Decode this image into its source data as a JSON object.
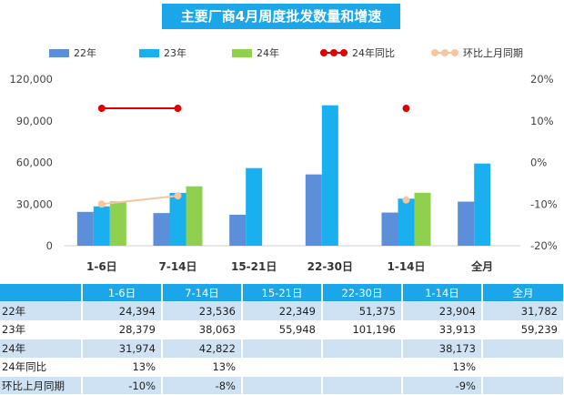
{
  "title": "主要厂商4月周度批发数量和增速",
  "chart_data": {
    "type": "bar",
    "categories": [
      "1-6日",
      "7-14日",
      "15-21日",
      "22-30日",
      "1-14日",
      "全月"
    ],
    "series": [
      {
        "name": "22年",
        "type": "bar",
        "axis": "left",
        "color": "#5b8fd9",
        "values": [
          24394,
          23536,
          22349,
          51375,
          23904,
          31782
        ]
      },
      {
        "name": "23年",
        "type": "bar",
        "axis": "left",
        "color": "#1ab0ef",
        "values": [
          28379,
          38063,
          55948,
          101196,
          33913,
          59239
        ]
      },
      {
        "name": "24年",
        "type": "bar",
        "axis": "left",
        "color": "#8fd14f",
        "values": [
          31974,
          42822,
          null,
          null,
          38173,
          null
        ]
      },
      {
        "name": "24年同比",
        "type": "line",
        "axis": "right",
        "color": "#e00000",
        "values": [
          13,
          13,
          null,
          null,
          13,
          null
        ]
      },
      {
        "name": "环比上月同期",
        "type": "line",
        "axis": "right",
        "color": "#f6c6a0",
        "values": [
          -10,
          -8,
          null,
          null,
          -9,
          null
        ]
      }
    ],
    "y_left": {
      "range": [
        0,
        120000
      ],
      "ticks": [
        "0",
        "30,000",
        "60,000",
        "90,000",
        "120,000"
      ]
    },
    "y_right": {
      "range": [
        -20,
        20
      ],
      "ticks": [
        "-20%",
        "-10%",
        "0%",
        "10%",
        "20%"
      ]
    },
    "legend_position": "top"
  },
  "table": {
    "header": [
      "",
      "1-6日",
      "7-14日",
      "15-21日",
      "22-30日",
      "1-14日",
      "全月"
    ],
    "rows": [
      {
        "label": "22年",
        "cells": [
          "24,394",
          "23,536",
          "22,349",
          "51,375",
          "23,904",
          "31,782"
        ]
      },
      {
        "label": "23年",
        "cells": [
          "28,379",
          "38,063",
          "55,948",
          "101,196",
          "33,913",
          "59,239"
        ]
      },
      {
        "label": "24年",
        "cells": [
          "31,974",
          "42,822",
          "",
          "",
          "38,173",
          ""
        ]
      },
      {
        "label": "24年同比",
        "cells": [
          "13%",
          "13%",
          "",
          "",
          "13%",
          ""
        ]
      },
      {
        "label": "环比上月同期",
        "cells": [
          "-10%",
          "-8%",
          "",
          "",
          "-9%",
          ""
        ]
      }
    ]
  }
}
